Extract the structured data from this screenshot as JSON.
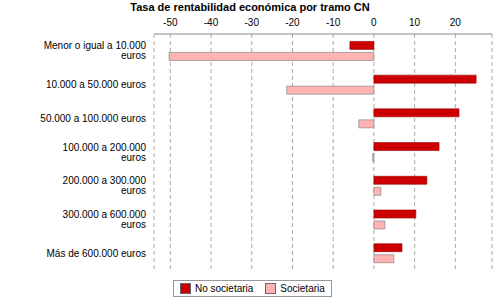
{
  "chart_data": {
    "type": "bar",
    "title": "Tasa de rentabilidad económica por tramo CN",
    "orientation": "horizontal",
    "categories": [
      "Menor o igual a 10.000 euros",
      "10.000 a 50.000 euros",
      "50.000 a 100.000 euros",
      "100.000 a 200.000 euros",
      "200.000 a 300.000 euros",
      "300.000 a 600.000 euros",
      "Más de 600.000 euros"
    ],
    "series": [
      {
        "name": "No societaria",
        "color": "#cc0000",
        "values": [
          -5.9,
          25.1,
          20.9,
          16,
          13,
          10.3,
          6.9
        ]
      },
      {
        "name": "Societaria",
        "color": "#ffb3b3",
        "values": [
          -50.3,
          -21.4,
          -3.7,
          -0.3,
          1.7,
          2.7,
          4.9
        ]
      }
    ],
    "xlim": [
      -54,
      29
    ],
    "xticks": [
      -50,
      -40,
      -30,
      -20,
      -10,
      0,
      10,
      20
    ],
    "grid": true,
    "legend": "bottom"
  }
}
